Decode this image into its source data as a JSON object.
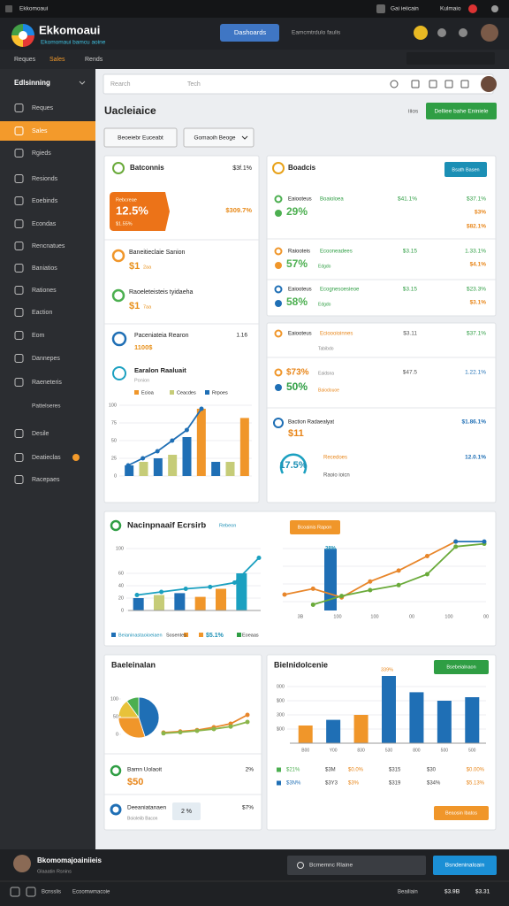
{
  "topbar": {
    "left": "Ekkomoaui",
    "right": [
      "Gai ieiicain",
      "Kulmaio"
    ]
  },
  "header": {
    "title": "Ekkomoaui",
    "subtitle": "Ekomomaui bamcu aoine",
    "button": "Dashoards",
    "search": "Eamcmtrdulo faulis"
  },
  "tabs": [
    "Reques",
    "Sales",
    "Rends"
  ],
  "sidebar": {
    "heading": "Edlsinning",
    "active": 1,
    "items": [
      "Reques",
      "Sales",
      "Rgieds",
      "Resionds",
      "Eoebinds",
      "Econdas",
      "Rencnatues",
      "Baniatios",
      "Rationes",
      "Eaction",
      "Eom",
      "Dannepes",
      "Raeneteris",
      "Pattelseres",
      "Desile",
      "Deatieclas",
      "Racepaes"
    ]
  },
  "search": {
    "placeholder": "Rearch",
    "hint": "Tech"
  },
  "main": {
    "title": "Uacleiaice",
    "note": "iiios",
    "button": "Delliee bahe Eniniele",
    "filters": [
      "Beoeiebr Euceabt",
      "Gomaoih Beoge"
    ]
  },
  "left_card": {
    "title": "Batconnis",
    "value": "$3f.1%",
    "badge": {
      "label": "Rebcreae",
      "value": "12.5%",
      "sub": "$1.55%"
    },
    "badge_right": "$309.7%",
    "items": [
      {
        "label": "Baneitieclaie Sanion",
        "value": "$1",
        "unit": "2aa"
      },
      {
        "label": "Raoeleteisteis tyidaeha",
        "value": "$1",
        "unit": "7aa"
      }
    ],
    "report": {
      "label": "Paceniateia Rearon",
      "count": "1.16",
      "value": "1100$"
    },
    "chart": {
      "title": "Earalon Raaluait",
      "subtitle": "Ponion",
      "legend": [
        {
          "name": "Ecioa",
          "color": "#f0962a"
        },
        {
          "name": "Ceacdes",
          "color": "#c6cc78"
        },
        {
          "name": "Rrpoes",
          "color": "#1f6fb5"
        }
      ],
      "ylim": [
        0,
        100
      ],
      "yticks": [
        0,
        25,
        50,
        75,
        100
      ],
      "values": [
        15,
        20,
        25,
        30,
        55,
        95,
        20,
        20,
        82
      ],
      "colors": [
        "#1f6fb5",
        "#c6cc78",
        "#1f6fb5",
        "#c6cc78",
        "#1f6fb5",
        "#f0962a",
        "#1f6fb5",
        "#c6cc78",
        "#f0962a"
      ],
      "lines": [
        {
          "color": "#1f6fb5",
          "values": [
            15,
            25,
            35,
            50,
            65,
            95
          ]
        }
      ]
    }
  },
  "right_card_a": {
    "title": "Boadcis",
    "button": "Bsath Basen",
    "rows": [
      {
        "icon": "#4caf50",
        "label": "Eaiooteus",
        "sub": "Boaioloea",
        "pct": "$41.1%",
        "right": "$37.1%",
        "big": "29%",
        "big_color": "#4caf50",
        "right2": "$3%",
        "right3": "$82.1%"
      },
      {
        "icon": "#f0962a",
        "label": "Raiooteis",
        "sub": "Ecooneadees",
        "pct": "$3.15",
        "right": "1.33.1%",
        "big": "57%",
        "big_color": "#4caf50",
        "note": "Edgdo",
        "right2": "$4.1%"
      },
      {
        "icon": "#1f6fb5",
        "label": "Eaiooteus",
        "sub": "Ecognesoesieoe",
        "pct": "$3.15",
        "right": "$23.3%",
        "big": "58%",
        "big_color": "#4caf50",
        "note": "Edgdo",
        "right2": "$3.1%"
      }
    ]
  },
  "right_card_b": {
    "rows": [
      {
        "icon": "#f0962a",
        "label": "Eaiooteus",
        "sub": "Ecioooioinnes",
        "pct": "$3.11",
        "right": "$37.1%",
        "note": "Tabibdo"
      },
      {
        "icon": "#f0962a",
        "label": "$73%",
        "sub": "Eaidsna",
        "pct": "$47.5",
        "right": "1.22.1%",
        "big": "50%",
        "note": "Baiodouoe"
      }
    ],
    "action": {
      "label": "Baction Radaealyat",
      "value": "$11",
      "right": "$1.86.1%"
    },
    "gauge": {
      "value": "17.5%",
      "label": "Recedoes",
      "sub": "Raoio ioicn",
      "right": "12.0.1%"
    }
  },
  "wide_card": {
    "title": "Nacinpnaaif Ecrsirb",
    "tag": "Rebeon",
    "button": "Bcoainis Rapon",
    "left_chart": {
      "ylim": [
        0,
        100
      ],
      "yticks": [
        0,
        20,
        40,
        60,
        100
      ],
      "values": [
        20,
        25,
        28,
        22,
        35,
        60
      ],
      "colors": [
        "#1f6fb5",
        "#c6cc78",
        "#1f6fb5",
        "#f0962a",
        "#f0962a",
        "#1ba0c0"
      ],
      "lines": [
        {
          "color": "#1ba0c0",
          "values": [
            25,
            30,
            35,
            38,
            45,
            85
          ]
        }
      ]
    },
    "legend": [
      "Beianinastaoioeiaen",
      "Sosentes",
      "$5.1%",
      "Eoeaas"
    ],
    "right_chart": {
      "ylim": [
        0,
        100
      ],
      "bar_label": "38%",
      "xticks": [
        "3B",
        "100",
        "100",
        "00",
        "100",
        "00"
      ],
      "values": [
        85
      ],
      "colors": [
        "#1f6fb5"
      ],
      "lines": [
        {
          "color": "#e8862a",
          "values": [
            22,
            30,
            18,
            40,
            55,
            75,
            95,
            null
          ]
        },
        {
          "color": "#6aaa3a",
          "values": [
            null,
            8,
            20,
            28,
            35,
            50,
            88,
            92
          ]
        },
        {
          "color": "#1f6fb5",
          "values": [
            null,
            null,
            null,
            null,
            null,
            null,
            95,
            95
          ]
        }
      ]
    }
  },
  "bottom_left": {
    "title": "Baeleinalan",
    "pie": {
      "values": [
        45,
        30,
        15,
        10
      ],
      "colors": [
        "#1f6fb5",
        "#f0962a",
        "#e8c23a",
        "#4caf50"
      ]
    },
    "chart": {
      "ylim": [
        0,
        100
      ],
      "yticks": [
        0,
        50,
        100
      ],
      "lines": [
        {
          "color": "#e8862a",
          "values": [
            5,
            8,
            12,
            20,
            30,
            55
          ]
        },
        {
          "color": "#8bb54a",
          "values": [
            3,
            6,
            10,
            15,
            22,
            35
          ]
        }
      ]
    },
    "items": [
      {
        "label": "Bamn Uolaoit",
        "value": "$50",
        "right": "2%"
      },
      {
        "label": "Deeaniatanaen",
        "sub": "Boioleiib Bacon",
        "box": "2 %",
        "right": "$7%"
      }
    ]
  },
  "bottom_right": {
    "title": "Bielnidolcenie",
    "button": "Bsebeialnaon",
    "tag": "339%",
    "chart": {
      "ylim": [
        0,
        100
      ],
      "yticks": [
        {
          "value": 20,
          "label": "$00"
        },
        {
          "value": 40,
          "label": "300"
        },
        {
          "value": 60,
          "label": "$00"
        },
        {
          "value": 80,
          "label": "000"
        }
      ],
      "xticks": [
        "B00",
        "Y00",
        "830",
        "530",
        "800",
        "500",
        "500"
      ],
      "values": [
        25,
        33,
        40,
        95,
        72,
        60,
        65
      ],
      "colors": [
        "#f0962a",
        "#1f6fb5",
        "#f0962a",
        "#1f6fb5",
        "#1f6fb5",
        "#1f6fb5",
        "#1f6fb5"
      ]
    },
    "rows": [
      {
        "color": "#4caf50",
        "cells": [
          "$21%",
          "$3M",
          "$0.0%",
          "$315",
          "$30",
          "$0.00%"
        ]
      },
      {
        "color": "#1f6fb5",
        "cells": [
          "$3N%",
          "$3Y3",
          "$3%",
          "$319",
          "$34%",
          "$5.13%"
        ]
      }
    ],
    "button2": "Beaosin lbatos"
  },
  "footer": {
    "name": "Bkomomajoainiieis",
    "sub": "Glaaatin Rsnins",
    "search": "Bcmemnc Rlaine",
    "button": "Bsndeninaloain",
    "bottom_left": [
      "Bcnsslis",
      "Ecoomwmacoie"
    ],
    "bottom_right": [
      "Beailiain",
      "$3.9B",
      "$3.31"
    ]
  }
}
